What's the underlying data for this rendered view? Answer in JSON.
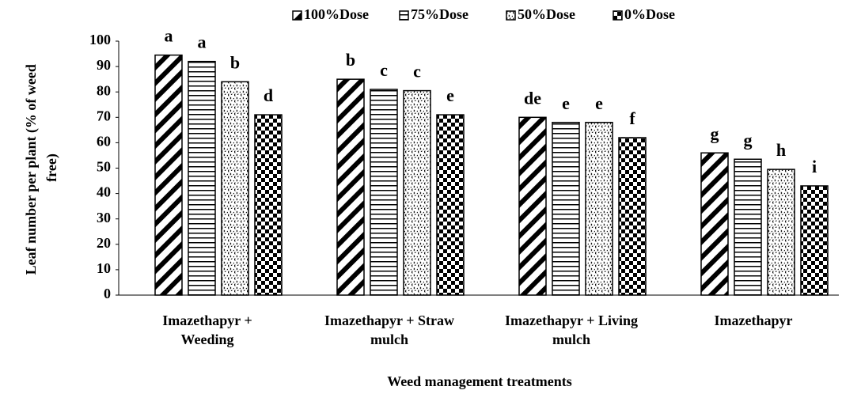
{
  "chart_data": {
    "type": "bar",
    "categories": [
      [
        "Imazethapyr  +",
        "Weeding"
      ],
      [
        "Imazethapyr  + Straw",
        "mulch"
      ],
      [
        "Imazethapyr  +   Living",
        "mulch"
      ],
      [
        "Imazethapyr"
      ]
    ],
    "series": [
      {
        "name": "100%Dose",
        "color": "#000000",
        "pattern": "diagonal",
        "values": [
          94.5,
          85,
          70,
          56
        ],
        "letters": [
          "a",
          "b",
          "de",
          "g"
        ]
      },
      {
        "name": "75%Dose",
        "color": "#000000",
        "pattern": "horizontal",
        "values": [
          92,
          81,
          68,
          53.5
        ],
        "letters": [
          "a",
          "c",
          "e",
          "g"
        ]
      },
      {
        "name": "50%Dose",
        "color": "#000000",
        "pattern": "dashed-diagonal",
        "values": [
          84,
          80.5,
          68,
          49.5
        ],
        "letters": [
          "b",
          "c",
          "e",
          "h"
        ]
      },
      {
        "name": "0%Dose",
        "color": "#000000",
        "pattern": "checker",
        "values": [
          71,
          71,
          62,
          43
        ],
        "letters": [
          "d",
          "e",
          "f",
          "i"
        ]
      }
    ],
    "ylabel": [
      "Leaf number per plant (% of weed",
      "free)"
    ],
    "xlabel": "Weed management treatments",
    "ylim": [
      0,
      100
    ],
    "yticks": [
      0,
      10,
      20,
      30,
      40,
      50,
      60,
      70,
      80,
      90,
      100
    ],
    "grid": false,
    "legend": "top"
  }
}
